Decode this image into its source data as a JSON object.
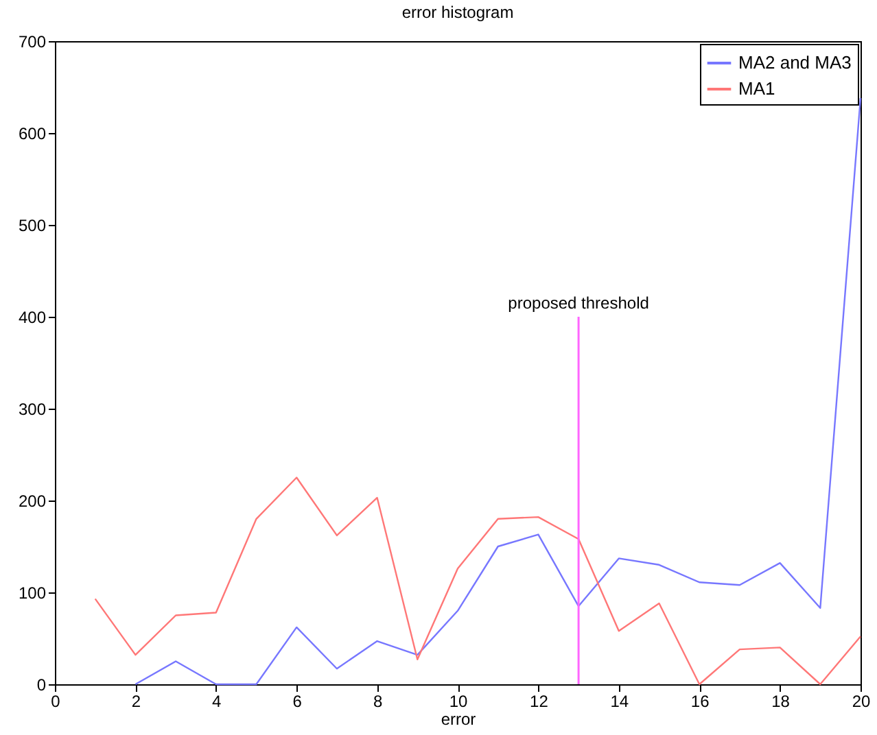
{
  "chart_data": {
    "type": "line",
    "title": "error histogram",
    "xlabel": "error",
    "x": [
      1,
      2,
      3,
      4,
      5,
      6,
      7,
      8,
      9,
      10,
      11,
      12,
      13,
      14,
      15,
      16,
      17,
      18,
      19,
      20
    ],
    "series": [
      {
        "name": "MA2 and MA3",
        "color": "#7777ff",
        "values": [
          null,
          0,
          25,
          0,
          0,
          62,
          17,
          47,
          32,
          80,
          150,
          163,
          85,
          137,
          130,
          111,
          108,
          132,
          83,
          638
        ]
      },
      {
        "name": "MA1",
        "color": "#ff7777",
        "values": [
          93,
          32,
          75,
          78,
          180,
          225,
          162,
          203,
          27,
          126,
          180,
          182,
          158,
          58,
          88,
          0,
          38,
          40,
          0,
          52
        ]
      }
    ],
    "xlim": [
      0,
      20
    ],
    "xticks": [
      0,
      2,
      4,
      6,
      8,
      10,
      12,
      14,
      16,
      18,
      20
    ],
    "ylim": [
      0,
      700
    ],
    "yticks": [
      0,
      100,
      200,
      300,
      400,
      500,
      600,
      700
    ],
    "ref_lines": [
      {
        "axis": "x",
        "value": 13,
        "color": "#ff66ff"
      }
    ],
    "annotations": [
      {
        "text": "proposed threshold",
        "x": 13,
        "y": 400
      }
    ],
    "legend": "top right",
    "grid": false
  }
}
